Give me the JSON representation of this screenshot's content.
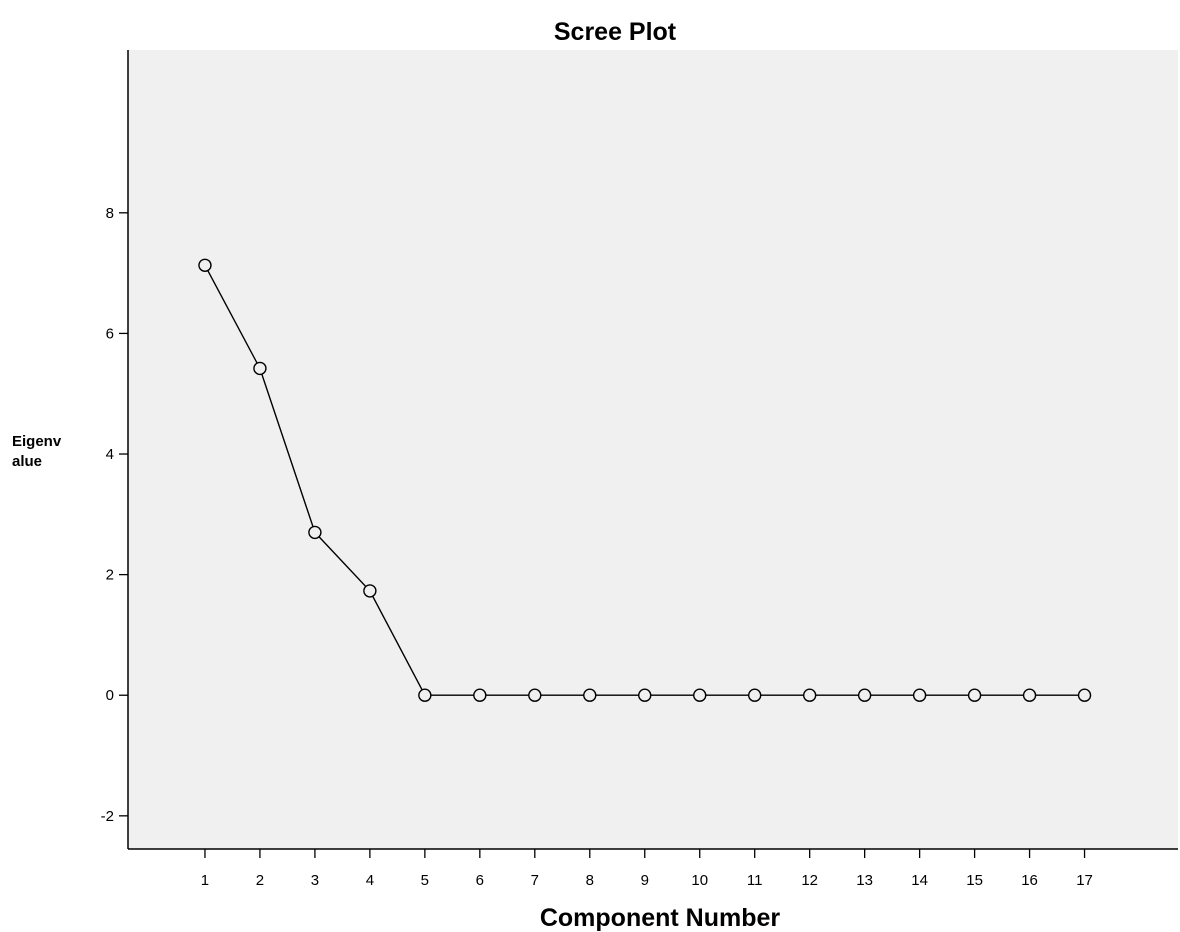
{
  "chart_data": {
    "type": "line",
    "title": "Scree Plot",
    "xlabel": "Component Number",
    "ylabel_lines": [
      "Eigenv",
      "alue"
    ],
    "x": [
      1,
      2,
      3,
      4,
      5,
      6,
      7,
      8,
      9,
      10,
      11,
      12,
      13,
      14,
      15,
      16,
      17
    ],
    "y": [
      7.13,
      5.42,
      2.7,
      1.73,
      0,
      0,
      0,
      0,
      0,
      0,
      0,
      0,
      0,
      0,
      0,
      0,
      0
    ],
    "xticks": [
      "1",
      "2",
      "3",
      "4",
      "5",
      "6",
      "7",
      "8",
      "9",
      "10",
      "11",
      "12",
      "13",
      "14",
      "15",
      "16",
      "17"
    ],
    "yticks": [
      -2,
      0,
      2,
      4,
      6,
      8
    ],
    "ylim": [
      -2.55,
      10.7
    ],
    "xlim": [
      -0.4,
      18.7
    ],
    "marker": "open-circle",
    "grid": false,
    "legend": "none",
    "colors": {
      "plot_background": "#f0f0f0",
      "line": "#000000",
      "marker_fill": "#f0f0f0",
      "frame": "#000000"
    }
  }
}
